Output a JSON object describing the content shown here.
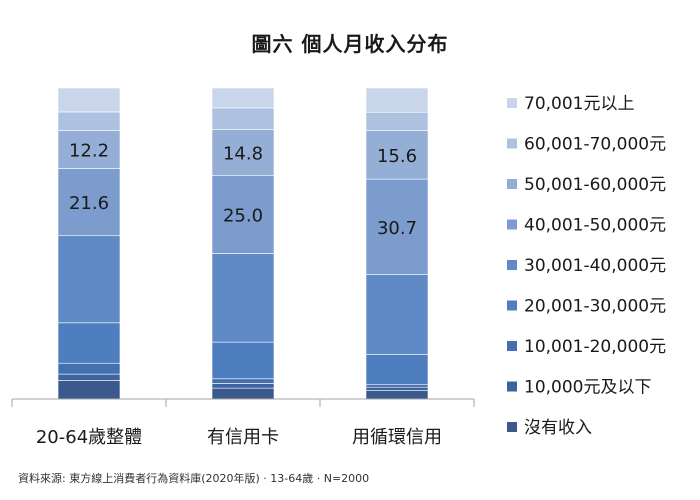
{
  "chart_data": {
    "type": "bar",
    "stacked": true,
    "percent": true,
    "title": "圖六 個人月收入分布",
    "categories": [
      "20-64歲整體",
      "有信用卡",
      "用循環信用"
    ],
    "ylim": [
      0,
      100
    ],
    "grid": false,
    "legend_position": "right",
    "series": [
      {
        "name": "沒有收入",
        "color": "#3a5a8c",
        "values": [
          6.0,
          3.5,
          2.8
        ]
      },
      {
        "name": "10,000元及以下",
        "color": "#3d64a0",
        "values": [
          2.0,
          1.5,
          1.0
        ]
      },
      {
        "name": "10,001-20,000元",
        "color": "#4470b0",
        "values": [
          3.5,
          1.5,
          0.8
        ]
      },
      {
        "name": "20,001-30,000元",
        "color": "#4f7ec0",
        "values": [
          13.0,
          11.8,
          9.7
        ]
      },
      {
        "name": "30,001-40,000元",
        "color": "#5f8ac6",
        "values": [
          28.0,
          28.5,
          25.7
        ]
      },
      {
        "name": "40,001-50,000元",
        "color": "#7b9ccd",
        "values": [
          21.6,
          25.0,
          30.7
        ]
      },
      {
        "name": "50,001-60,000元",
        "color": "#94aed6",
        "values": [
          12.2,
          14.8,
          15.6
        ]
      },
      {
        "name": "60,001-70,000元",
        "color": "#adc1e0",
        "values": [
          6.0,
          7.0,
          5.9
        ]
      },
      {
        "name": "70,001元以上",
        "color": "#c9d5ea",
        "values": [
          7.7,
          6.4,
          7.8
        ]
      }
    ],
    "data_labels": [
      {
        "series": 5,
        "category": 0,
        "text": "21.6"
      },
      {
        "series": 6,
        "category": 0,
        "text": "12.2"
      },
      {
        "series": 5,
        "category": 1,
        "text": "25.0"
      },
      {
        "series": 6,
        "category": 1,
        "text": "14.8"
      },
      {
        "series": 5,
        "category": 2,
        "text": "30.7"
      },
      {
        "series": 6,
        "category": 2,
        "text": "15.6"
      }
    ]
  },
  "legend_order": [
    "70,001元以上",
    "60,001-70,000元",
    "50,001-60,000元",
    "40,001-50,000元",
    "30,001-40,000元",
    "20,001-30,000元",
    "10,001-20,000元",
    "10,000元及以下",
    "沒有收入"
  ],
  "source_note": "資料來源: 東方線上消費者行為資料庫(2020年版) · 13-64歲 · N=2000"
}
